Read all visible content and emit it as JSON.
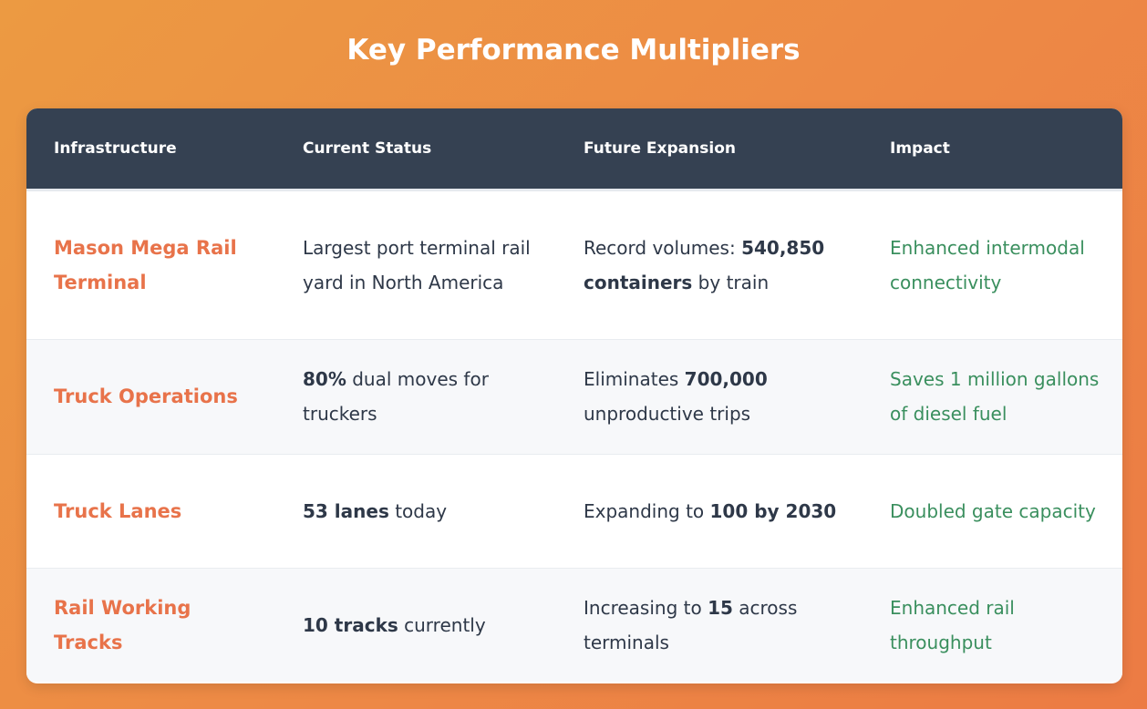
{
  "title": "Key Performance Multipliers",
  "table": {
    "headers": [
      "Infrastructure",
      "Current Status",
      "Future Expansion",
      "Impact"
    ],
    "rows": [
      {
        "infrastructure": "Mason Mega Rail Terminal",
        "status": {
          "pre": "Largest port terminal rail yard in North America",
          "bold": "",
          "post": ""
        },
        "future": {
          "pre": "Record volumes: ",
          "bold": "540,850 containers",
          "post": " by train"
        },
        "impact": "Enhanced intermodal connectivity"
      },
      {
        "infrastructure": "Truck Operations",
        "status": {
          "pre": "",
          "bold": "80%",
          "post": " dual moves for truckers"
        },
        "future": {
          "pre": "Eliminates ",
          "bold": "700,000",
          "post": " unproductive trips"
        },
        "impact": "Saves 1 million gallons of diesel fuel"
      },
      {
        "infrastructure": "Truck Lanes",
        "status": {
          "pre": "",
          "bold": "53 lanes",
          "post": " today"
        },
        "future": {
          "pre": "Expanding to ",
          "bold": "100 by 2030",
          "post": ""
        },
        "impact": "Doubled gate capacity"
      },
      {
        "infrastructure": "Rail Working Tracks",
        "status": {
          "pre": "",
          "bold": "10 tracks",
          "post": " currently"
        },
        "future": {
          "pre": "Increasing to ",
          "bold": "15",
          "post": " across terminals"
        },
        "impact": "Enhanced rail throughput"
      }
    ]
  },
  "colors": {
    "background_start": "#EC9A42",
    "background_end": "#EC7B44",
    "header_bg": "#354152",
    "infrastructure_text": "#E8734A",
    "impact_text": "#3A8F5E",
    "body_text": "#2E3848"
  }
}
